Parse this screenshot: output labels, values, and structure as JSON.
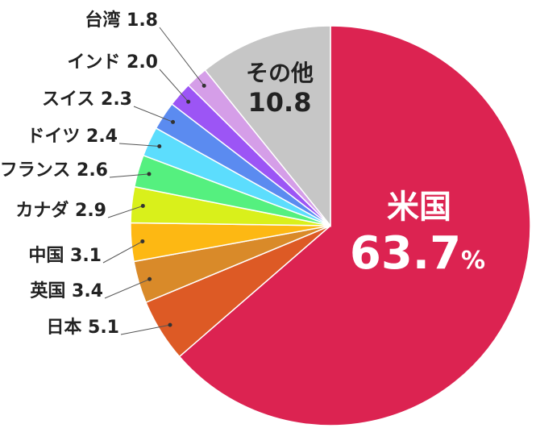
{
  "chart_data": {
    "type": "pie",
    "title": "",
    "slices": [
      {
        "label": "米国",
        "value": 63.7,
        "value_text": "63.7",
        "unit": "%",
        "color": "#DC2351"
      },
      {
        "label": "日本",
        "value": 5.1,
        "value_text": "5.1",
        "color": "#DD5A25"
      },
      {
        "label": "英国",
        "value": 3.4,
        "value_text": "3.4",
        "color": "#D98A29"
      },
      {
        "label": "中国",
        "value": 3.1,
        "value_text": "3.1",
        "color": "#FDB813"
      },
      {
        "label": "カナダ",
        "value": 2.9,
        "value_text": "2.9",
        "color": "#D9F01B"
      },
      {
        "label": "フランス",
        "value": 2.6,
        "value_text": "2.6",
        "color": "#55F07F"
      },
      {
        "label": "ドイツ",
        "value": 2.4,
        "value_text": "2.4",
        "color": "#5CDDFD"
      },
      {
        "label": "スイス",
        "value": 2.3,
        "value_text": "2.3",
        "color": "#5B8BF0"
      },
      {
        "label": "インド",
        "value": 2.0,
        "value_text": "2.0",
        "color": "#9C55F5"
      },
      {
        "label": "台湾",
        "value": 1.8,
        "value_text": "1.8",
        "color": "#D59EE8"
      },
      {
        "label": "その他",
        "value": 10.8,
        "value_text": "10.8",
        "color": "#C6C6C6"
      }
    ],
    "direction": "clockwise",
    "start": "top"
  }
}
